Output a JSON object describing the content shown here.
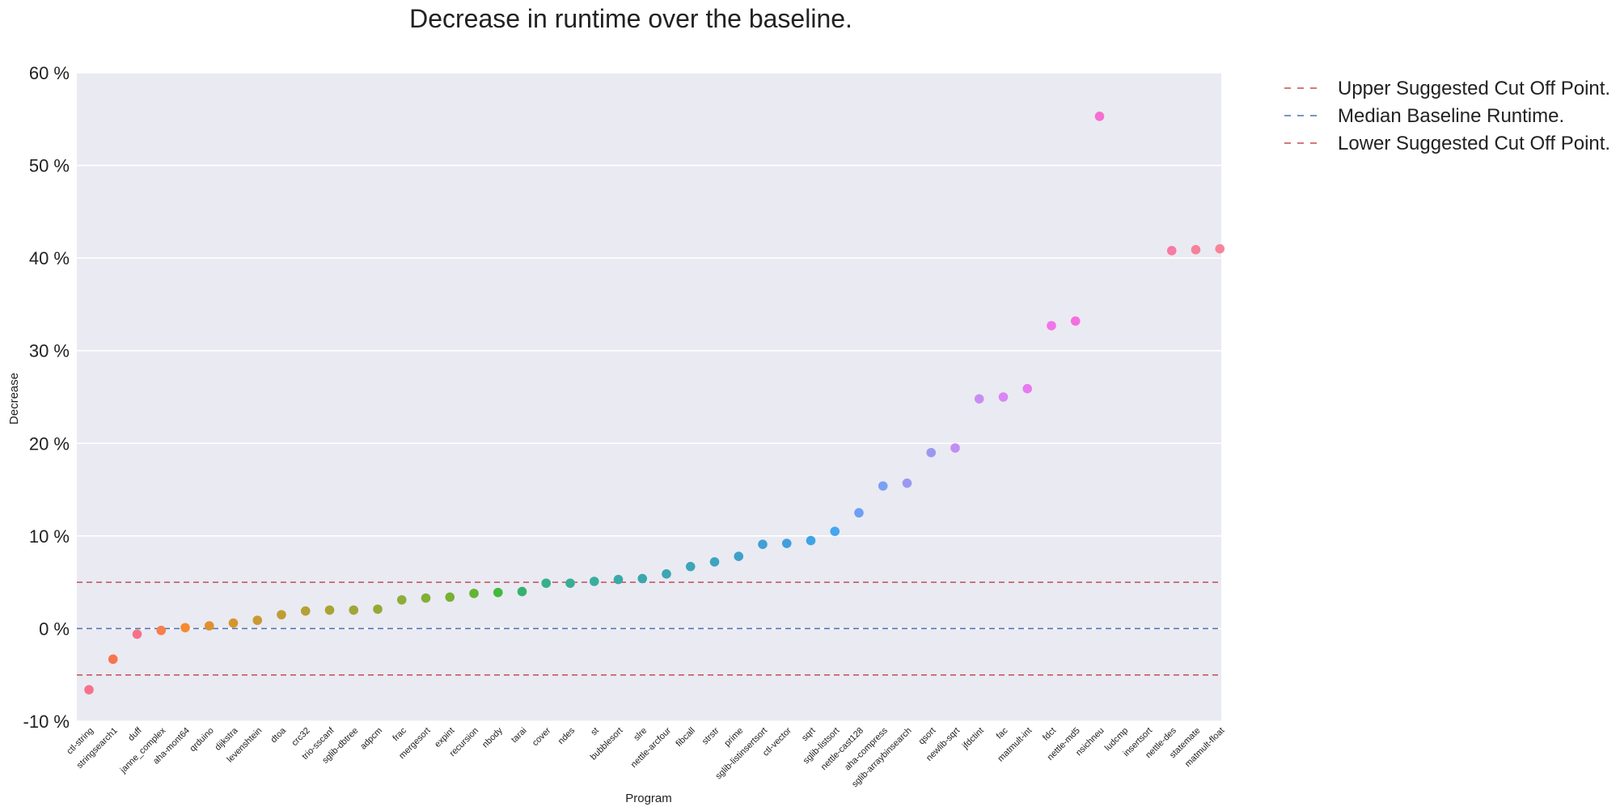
{
  "chart_data": {
    "type": "scatter",
    "title": "Decrease in runtime over the baseline.",
    "xlabel": "Program",
    "ylabel": "Decrease",
    "ylim": [
      -10,
      60
    ],
    "yticks": [
      -10,
      0,
      10,
      20,
      30,
      40,
      50,
      60
    ],
    "ytick_labels": [
      "-10 %",
      "0 %",
      "10 %",
      "20 %",
      "30 %",
      "40 %",
      "50 %",
      "60 %"
    ],
    "grid": true,
    "legend_position": "outside-top-right",
    "categories": [
      "ctl-string",
      "stringsearch1",
      "duff",
      "janne_complex",
      "aha-mont64",
      "qrduino",
      "dijkstra",
      "levenshtein",
      "dtoa",
      "crc32",
      "trio-sscanf",
      "sglib-dbtree",
      "adpcm",
      "frac",
      "mergesort",
      "expint",
      "recursion",
      "nbody",
      "tarai",
      "cover",
      "ndes",
      "st",
      "bubblesort",
      "slre",
      "nettle-arcfour",
      "fibcall",
      "strstr",
      "prime",
      "sglib-listinsertsort",
      "ctl-vector",
      "sqrt",
      "sglib-listsort",
      "nettle-cast128",
      "aha-compress",
      "sglib-arraybinsearch",
      "qsort",
      "newlib-sqrt",
      "jfdctint",
      "fac",
      "matmult-int",
      "fdct",
      "nettle-md5",
      "nsichneu",
      "ludcmp",
      "insertsort",
      "nettle-des",
      "statemate",
      "matmult-float"
    ],
    "values": [
      -6.6,
      -3.3,
      -0.6,
      -0.2,
      0.1,
      0.3,
      0.6,
      0.9,
      1.5,
      1.9,
      2.0,
      2.0,
      2.1,
      3.1,
      3.3,
      3.4,
      3.8,
      3.9,
      4.0,
      4.9,
      4.9,
      5.1,
      5.3,
      5.4,
      5.9,
      6.7,
      7.2,
      7.8,
      9.1,
      9.2,
      9.5,
      10.5,
      12.5,
      15.4,
      15.7,
      19.0,
      19.5,
      24.8,
      25.0,
      25.9,
      32.7,
      33.2,
      55.3,
      null,
      null,
      40.8,
      40.9,
      41.0
    ],
    "point_colors": [
      "#f77189",
      "#f7744f",
      "#f77189",
      "#f77f4a",
      "#f48a30",
      "#e0902f",
      "#d4962f",
      "#c99a32",
      "#bf9d33",
      "#b4a033",
      "#a9a334",
      "#a0a636",
      "#96a936",
      "#8ead38",
      "#84ae37",
      "#77b032",
      "#62b532",
      "#40b93d",
      "#36b26e",
      "#36b18b",
      "#38ae97",
      "#39ada0",
      "#39aaa7",
      "#3aa8ac",
      "#3ba7b2",
      "#3ca5b9",
      "#3ea3c0",
      "#3ea0c9",
      "#40a0d4",
      "#3f9fdc",
      "#3ea3e6",
      "#46a6ef",
      "#6d9ff4",
      "#7aa0f3",
      "#9c98f2",
      "#9d98ef",
      "#c28ef1",
      "#c78df2",
      "#d886f4",
      "#e879f0",
      "#f175ea",
      "#f56edf",
      "#f66fd0",
      "#f67bbf",
      "#f77bb0",
      "#f77ba4",
      "#f7809a",
      "#f7859a"
    ],
    "series": [
      {
        "name": "Upper Suggested Cut Off Point.",
        "value": 5,
        "color": "#c44e52",
        "style": "dashed"
      },
      {
        "name": "Median Baseline Runtime.",
        "value": 0,
        "color": "#4c72b0",
        "style": "dashed"
      },
      {
        "name": "Lower Suggested Cut Off Point.",
        "value": -5,
        "color": "#c44e52",
        "style": "dashed"
      }
    ],
    "plot_background": "#eaeaf2"
  }
}
